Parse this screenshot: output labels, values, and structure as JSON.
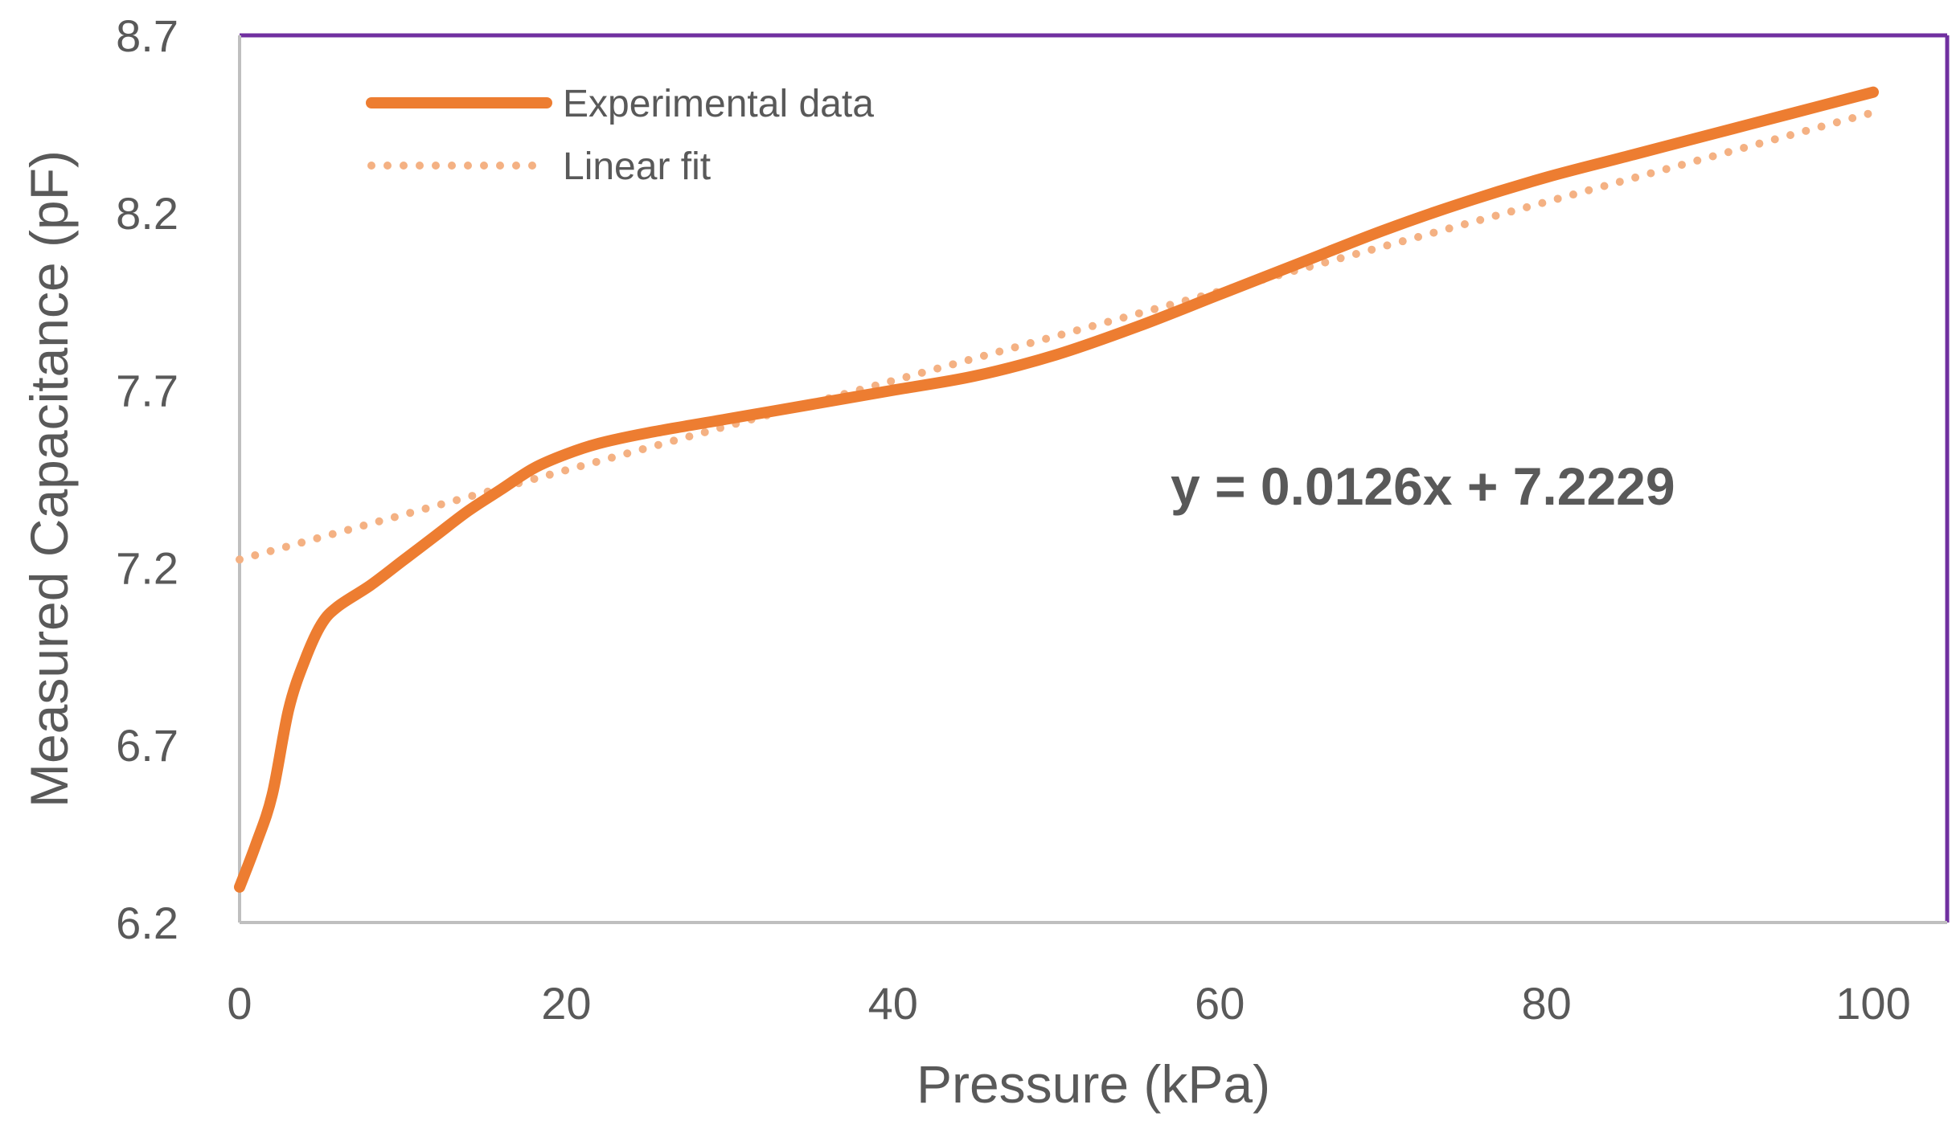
{
  "chart_data": {
    "type": "line",
    "title": "",
    "xlabel": "Pressure (kPa)",
    "ylabel": "Measured Capacitance (pF)",
    "xlim": [
      0,
      100
    ],
    "ylim": [
      6.2,
      8.7
    ],
    "x_ticks": [
      0,
      20,
      40,
      60,
      80,
      100
    ],
    "y_ticks": [
      6.2,
      6.7,
      7.2,
      7.7,
      8.2,
      8.7
    ],
    "x_tick_labels": [
      "0",
      "20",
      "40",
      "60",
      "80",
      "100"
    ],
    "y_tick_labels": [
      "6.2",
      "6.7",
      "7.2",
      "7.7",
      "8.2",
      "8.7"
    ],
    "grid": false,
    "legend_position": "top-left",
    "series": [
      {
        "name": "Experimental data",
        "style": "solid",
        "color": "#ED7D31",
        "x": [
          0,
          1,
          2,
          3,
          4,
          5,
          6,
          8,
          10,
          12,
          14,
          16,
          18,
          20,
          22,
          25,
          30,
          35,
          40,
          45,
          50,
          55,
          60,
          65,
          70,
          75,
          80,
          85,
          90,
          95,
          100
        ],
        "y": [
          6.3,
          6.42,
          6.56,
          6.8,
          6.94,
          7.04,
          7.09,
          7.15,
          7.22,
          7.29,
          7.36,
          7.42,
          7.48,
          7.52,
          7.55,
          7.58,
          7.62,
          7.66,
          7.7,
          7.74,
          7.8,
          7.88,
          7.97,
          8.06,
          8.15,
          8.23,
          8.3,
          8.36,
          8.42,
          8.48,
          8.54
        ]
      },
      {
        "name": "Linear fit",
        "style": "dotted",
        "color": "#F4B183",
        "x": [
          0,
          100
        ],
        "y": [
          7.2229,
          8.4829
        ]
      }
    ],
    "annotations": [
      {
        "text": "y = 0.0126x + 7.2229"
      }
    ]
  },
  "colors": {
    "experimental": "#ED7D31",
    "fit": "#F4B183",
    "frame": "#7030A0",
    "axis": "#BFBFBF"
  }
}
